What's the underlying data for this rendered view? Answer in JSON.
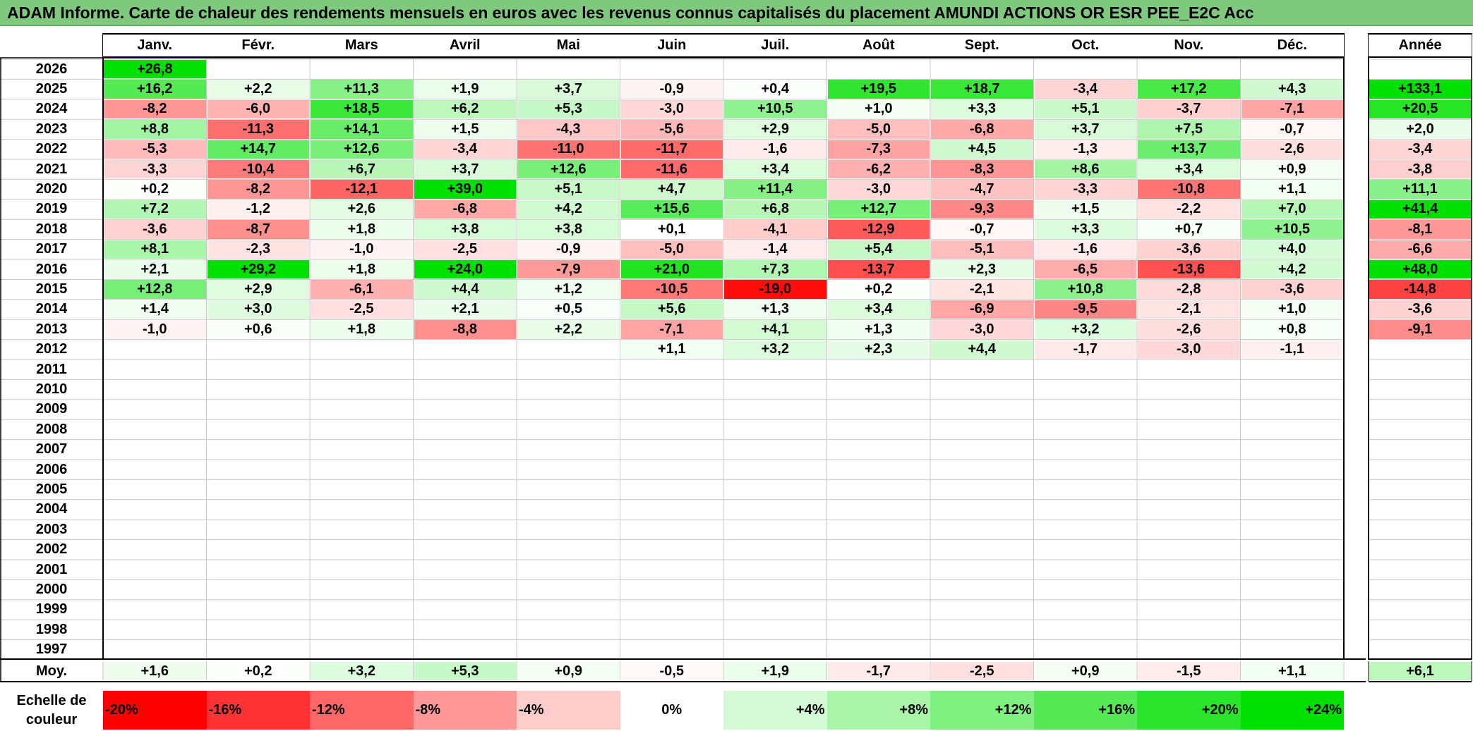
{
  "title": "ADAM Informe. Carte de chaleur des rendements mensuels en euros avec les revenus connus capitalisés du placement AMUNDI ACTIONS OR ESR PEE_E2C Acc",
  "chart_data": {
    "type": "heatmap",
    "months": [
      "Janv.",
      "Févr.",
      "Mars",
      "Avril",
      "Mai",
      "Juin",
      "Juil.",
      "Août",
      "Sept.",
      "Oct.",
      "Nov.",
      "Déc."
    ],
    "year_column_label": "Année",
    "average_label": "Moy.",
    "rows": [
      {
        "year": "2026",
        "values": [
          "+26,8",
          null,
          null,
          null,
          null,
          null,
          null,
          null,
          null,
          null,
          null,
          null
        ],
        "annual": null
      },
      {
        "year": "2025",
        "values": [
          "+16,2",
          "+2,2",
          "+11,3",
          "+1,9",
          "+3,7",
          "-0,9",
          "+0,4",
          "+19,5",
          "+18,7",
          "-3,4",
          "+17,2",
          "+4,3"
        ],
        "annual": "+133,1"
      },
      {
        "year": "2024",
        "values": [
          "-8,2",
          "-6,0",
          "+18,5",
          "+6,2",
          "+5,3",
          "-3,0",
          "+10,5",
          "+1,0",
          "+3,3",
          "+5,1",
          "-3,7",
          "-7,1"
        ],
        "annual": "+20,5"
      },
      {
        "year": "2023",
        "values": [
          "+8,8",
          "-11,3",
          "+14,1",
          "+1,5",
          "-4,3",
          "-5,6",
          "+2,9",
          "-5,0",
          "-6,8",
          "+3,7",
          "+7,5",
          "-0,7"
        ],
        "annual": "+2,0"
      },
      {
        "year": "2022",
        "values": [
          "-5,3",
          "+14,7",
          "+12,6",
          "-3,4",
          "-11,0",
          "-11,7",
          "-1,6",
          "-7,3",
          "+4,5",
          "-1,3",
          "+13,7",
          "-2,6"
        ],
        "annual": "-3,4"
      },
      {
        "year": "2021",
        "values": [
          "-3,3",
          "-10,4",
          "+6,7",
          "+3,7",
          "+12,6",
          "-11,6",
          "+3,4",
          "-6,2",
          "-8,3",
          "+8,6",
          "+3,4",
          "+0,9"
        ],
        "annual": "-3,8"
      },
      {
        "year": "2020",
        "values": [
          "+0,2",
          "-8,2",
          "-12,1",
          "+39,0",
          "+5,1",
          "+4,7",
          "+11,4",
          "-3,0",
          "-4,7",
          "-3,3",
          "-10,8",
          "+1,1"
        ],
        "annual": "+11,1"
      },
      {
        "year": "2019",
        "values": [
          "+7,2",
          "-1,2",
          "+2,6",
          "-6,8",
          "+4,2",
          "+15,6",
          "+6,8",
          "+12,7",
          "-9,3",
          "+1,5",
          "-2,2",
          "+7,0"
        ],
        "annual": "+41,4"
      },
      {
        "year": "2018",
        "values": [
          "-3,6",
          "-8,7",
          "+1,8",
          "+3,8",
          "+3,8",
          "+0,1",
          "-4,1",
          "-12,9",
          "-0,7",
          "+3,3",
          "+0,7",
          "+10,5"
        ],
        "annual": "-8,1"
      },
      {
        "year": "2017",
        "values": [
          "+8,1",
          "-2,3",
          "-1,0",
          "-2,5",
          "-0,9",
          "-5,0",
          "-1,4",
          "+5,4",
          "-5,1",
          "-1,6",
          "-3,6",
          "+4,0"
        ],
        "annual": "-6,6"
      },
      {
        "year": "2016",
        "values": [
          "+2,1",
          "+29,2",
          "+1,8",
          "+24,0",
          "-7,9",
          "+21,0",
          "+7,3",
          "-13,7",
          "+2,3",
          "-6,5",
          "-13,6",
          "+4,2"
        ],
        "annual": "+48,0"
      },
      {
        "year": "2015",
        "values": [
          "+12,8",
          "+2,9",
          "-6,1",
          "+4,4",
          "+1,2",
          "-10,5",
          "-19,0",
          "+0,2",
          "-2,1",
          "+10,8",
          "-2,8",
          "-3,6"
        ],
        "annual": "-14,8"
      },
      {
        "year": "2014",
        "values": [
          "+1,4",
          "+3,0",
          "-2,5",
          "+2,1",
          "+0,5",
          "+5,6",
          "+1,3",
          "+3,4",
          "-6,9",
          "-9,5",
          "-2,1",
          "+1,0"
        ],
        "annual": "-3,6"
      },
      {
        "year": "2013",
        "values": [
          "-1,0",
          "+0,6",
          "+1,8",
          "-8,8",
          "+2,2",
          "-7,1",
          "+4,1",
          "+1,3",
          "-3,0",
          "+3,2",
          "-2,6",
          "+0,8"
        ],
        "annual": "-9,1"
      },
      {
        "year": "2012",
        "values": [
          null,
          null,
          null,
          null,
          null,
          "+1,1",
          "+3,2",
          "+2,3",
          "+4,4",
          "-1,7",
          "-3,0",
          "-1,1"
        ],
        "annual": null
      },
      {
        "year": "2011",
        "values": [
          null,
          null,
          null,
          null,
          null,
          null,
          null,
          null,
          null,
          null,
          null,
          null
        ],
        "annual": null
      },
      {
        "year": "2010",
        "values": [
          null,
          null,
          null,
          null,
          null,
          null,
          null,
          null,
          null,
          null,
          null,
          null
        ],
        "annual": null
      },
      {
        "year": "2009",
        "values": [
          null,
          null,
          null,
          null,
          null,
          null,
          null,
          null,
          null,
          null,
          null,
          null
        ],
        "annual": null
      },
      {
        "year": "2008",
        "values": [
          null,
          null,
          null,
          null,
          null,
          null,
          null,
          null,
          null,
          null,
          null,
          null
        ],
        "annual": null
      },
      {
        "year": "2007",
        "values": [
          null,
          null,
          null,
          null,
          null,
          null,
          null,
          null,
          null,
          null,
          null,
          null
        ],
        "annual": null
      },
      {
        "year": "2006",
        "values": [
          null,
          null,
          null,
          null,
          null,
          null,
          null,
          null,
          null,
          null,
          null,
          null
        ],
        "annual": null
      },
      {
        "year": "2005",
        "values": [
          null,
          null,
          null,
          null,
          null,
          null,
          null,
          null,
          null,
          null,
          null,
          null
        ],
        "annual": null
      },
      {
        "year": "2004",
        "values": [
          null,
          null,
          null,
          null,
          null,
          null,
          null,
          null,
          null,
          null,
          null,
          null
        ],
        "annual": null
      },
      {
        "year": "2003",
        "values": [
          null,
          null,
          null,
          null,
          null,
          null,
          null,
          null,
          null,
          null,
          null,
          null
        ],
        "annual": null
      },
      {
        "year": "2002",
        "values": [
          null,
          null,
          null,
          null,
          null,
          null,
          null,
          null,
          null,
          null,
          null,
          null
        ],
        "annual": null
      },
      {
        "year": "2001",
        "values": [
          null,
          null,
          null,
          null,
          null,
          null,
          null,
          null,
          null,
          null,
          null,
          null
        ],
        "annual": null
      },
      {
        "year": "2000",
        "values": [
          null,
          null,
          null,
          null,
          null,
          null,
          null,
          null,
          null,
          null,
          null,
          null
        ],
        "annual": null
      },
      {
        "year": "1999",
        "values": [
          null,
          null,
          null,
          null,
          null,
          null,
          null,
          null,
          null,
          null,
          null,
          null
        ],
        "annual": null
      },
      {
        "year": "1998",
        "values": [
          null,
          null,
          null,
          null,
          null,
          null,
          null,
          null,
          null,
          null,
          null,
          null
        ],
        "annual": null
      },
      {
        "year": "1997",
        "values": [
          null,
          null,
          null,
          null,
          null,
          null,
          null,
          null,
          null,
          null,
          null,
          null
        ],
        "annual": null
      }
    ],
    "averages": [
      "+1,6",
      "+0,2",
      "+3,2",
      "+5,3",
      "+0,9",
      "-0,5",
      "+1,9",
      "-1,7",
      "-2,5",
      "+0,9",
      "-1,5",
      "+1,1"
    ],
    "average_annual": "+6,1",
    "color_scale_label": "Echelle de couleur",
    "color_scale": [
      "-20%",
      "-16%",
      "-12%",
      "-8%",
      "-4%",
      "0%",
      "+4%",
      "+8%",
      "+12%",
      "+16%",
      "+20%",
      "+24%"
    ],
    "color_scale_min": -20,
    "color_scale_max": 24,
    "colors": {
      "negative_max": "#ff0000",
      "neutral": "#ffffff",
      "positive_max": "#00e000",
      "title_bg": "#7fc97f"
    }
  }
}
